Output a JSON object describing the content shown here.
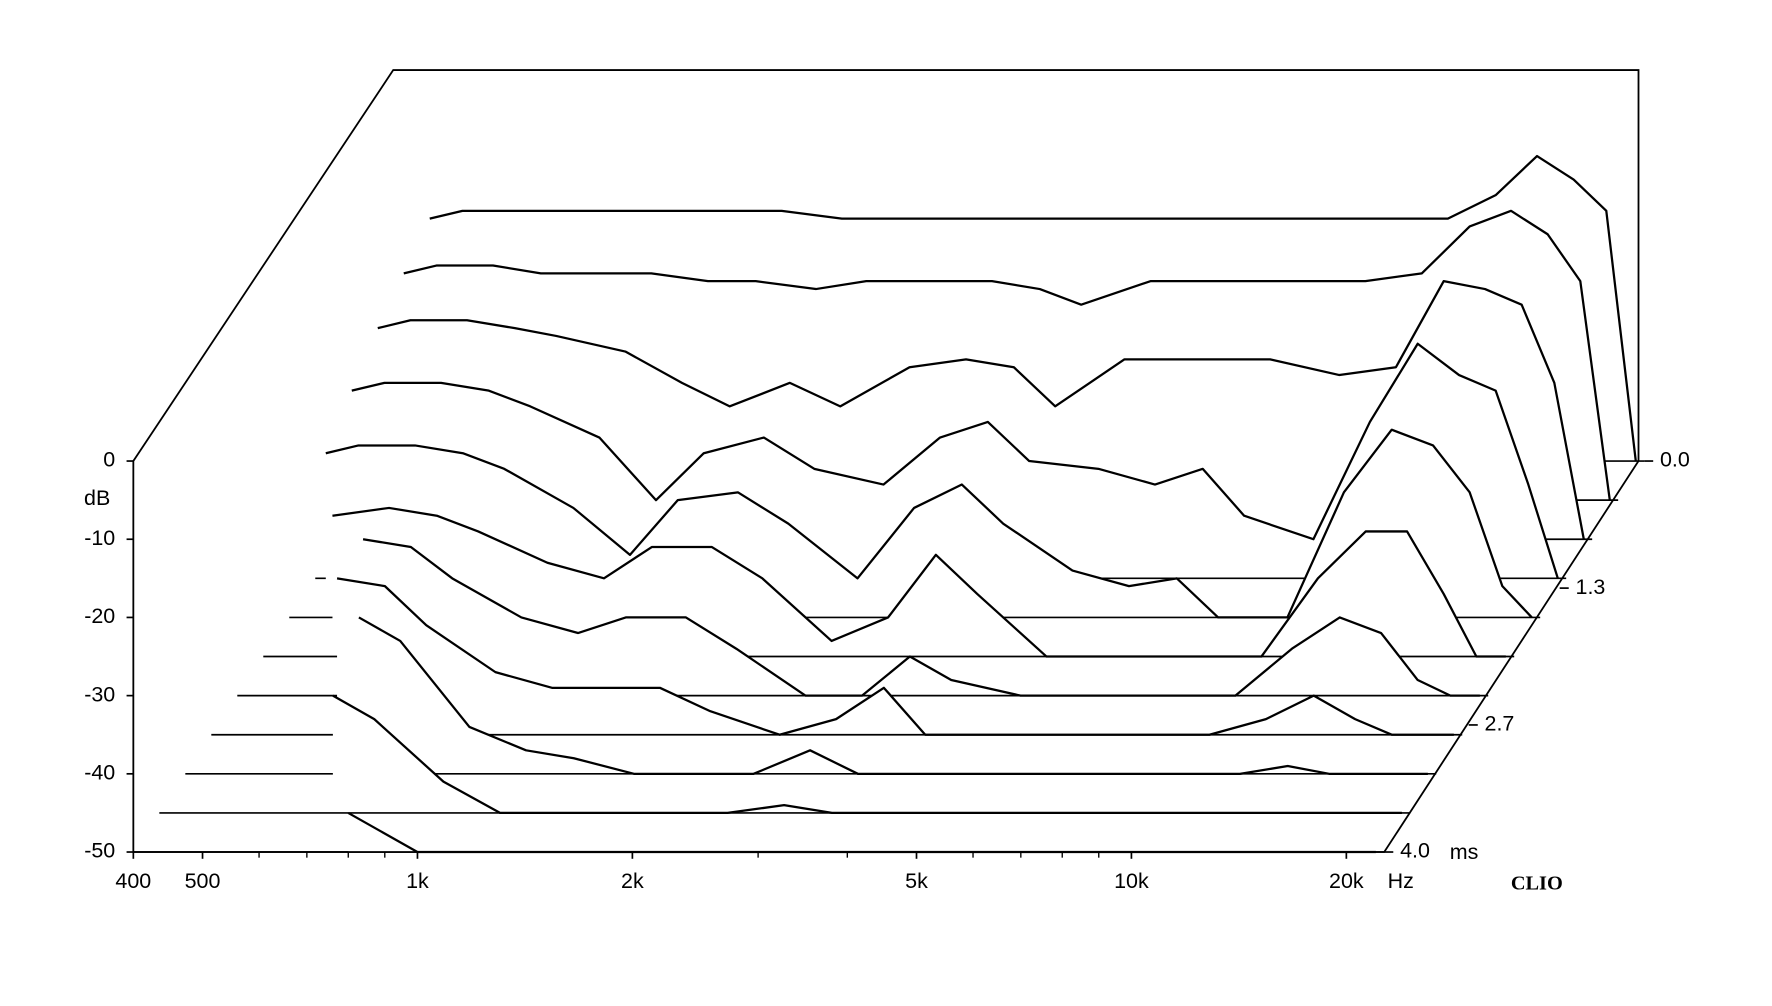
{
  "chart_data": {
    "type": "waterfall",
    "y_label": "dB",
    "x_unit": "Hz",
    "z_unit": "ms",
    "brand": "CLIO",
    "log_x": true,
    "xlim": [
      400,
      22600
    ],
    "xticks": [
      400,
      500,
      {
        "value": 1000,
        "label": "1k"
      },
      {
        "value": 2000,
        "label": "2k"
      },
      {
        "value": 5000,
        "label": "5k"
      },
      {
        "value": 10000,
        "label": "10k"
      },
      {
        "value": 20000,
        "label": "20k"
      }
    ],
    "xminor": [
      600,
      700,
      800,
      900,
      3000,
      4000,
      6000,
      7000,
      8000,
      9000
    ],
    "ylim": [
      -50,
      0
    ],
    "yticks": [
      0,
      -10,
      -20,
      -30,
      -40,
      -50
    ],
    "zlim": [
      0,
      4
    ],
    "zticks": [
      {
        "value": 0,
        "label": "0.0"
      },
      1.3,
      2.7,
      {
        "value": 4,
        "label": "4.0"
      }
    ],
    "color": "#000000",
    "x": [
      450,
      500,
      600,
      700,
      800,
      1000,
      1200,
      1400,
      1700,
      2000,
      2500,
      3000,
      3500,
      4000,
      5000,
      6000,
      7000,
      8000,
      10000,
      12000,
      14000,
      16000,
      18000,
      20000,
      22000
    ],
    "series": [
      {
        "time": 0,
        "values": [
          -19,
          -18,
          -18,
          -18,
          -18,
          -18,
          -18,
          -18,
          -19,
          -19,
          -19,
          -19,
          -19,
          -19,
          -19,
          -19,
          -19,
          -19,
          -19,
          -19,
          -16,
          -11,
          -14,
          -18,
          -50
        ]
      },
      {
        "time": 0.4,
        "values": [
          -21,
          -20,
          -20,
          -21,
          -21,
          -21,
          -22,
          -22,
          -23,
          -22,
          -22,
          -22,
          -23,
          -25,
          -22,
          -22,
          -22,
          -22,
          -22,
          -21,
          -15,
          -13,
          -16,
          -22,
          -50
        ]
      },
      {
        "time": 0.8,
        "values": [
          -23,
          -22,
          -22,
          -23,
          -24,
          -26,
          -30,
          -33,
          -30,
          -33,
          -28,
          -27,
          -28,
          -33,
          -27,
          -27,
          -27,
          -27,
          -29,
          -28,
          -17,
          -18,
          -20,
          -30,
          -50
        ]
      },
      {
        "time": 1.2,
        "values": [
          -26,
          -25,
          -25,
          -26,
          -28,
          -32,
          -40,
          -34,
          -32,
          -36,
          -38,
          -32,
          -30,
          -35,
          -36,
          -38,
          -36,
          -42,
          -45,
          -30,
          -20,
          -24,
          -26,
          -38,
          -50
        ]
      },
      {
        "time": 1.6,
        "values": [
          -29,
          -28,
          -28,
          -29,
          -31,
          -36,
          -42,
          -35,
          -34,
          -38,
          -45,
          -36,
          -33,
          -38,
          -44,
          -46,
          -45,
          -50,
          -50,
          -34,
          -26,
          -28,
          -34,
          -46,
          -50
        ]
      },
      {
        "time": 2.0,
        "values": [
          null,
          -32,
          -31,
          -32,
          -34,
          -38,
          -40,
          -36,
          -36,
          -40,
          -48,
          -45,
          -37,
          -42,
          -50,
          -50,
          -50,
          -50,
          -50,
          -40,
          -34,
          -34,
          -42,
          -50,
          -50
        ]
      },
      {
        "time": 2.4,
        "values": [
          null,
          null,
          -30,
          -31,
          -35,
          -40,
          -42,
          -40,
          -40,
          -44,
          -50,
          -50,
          -45,
          -48,
          -50,
          -50,
          -50,
          -50,
          -50,
          -44,
          -40,
          -42,
          -48,
          -50,
          -50
        ]
      },
      {
        "time": 2.8,
        "values": [
          null,
          null,
          -30,
          -31,
          -36,
          -42,
          -44,
          -44,
          -44,
          -47,
          -50,
          -48,
          -44,
          -50,
          -50,
          -50,
          -50,
          -50,
          -50,
          -48,
          -45,
          -48,
          -50,
          -50,
          -50
        ]
      },
      {
        "time": 3.2,
        "values": [
          null,
          null,
          null,
          -30,
          -33,
          -44,
          -47,
          -48,
          -50,
          -50,
          -50,
          -47,
          -50,
          -50,
          -50,
          -50,
          -50,
          -50,
          -50,
          -50,
          -49,
          -50,
          -50,
          -50,
          -50
        ]
      },
      {
        "time": 3.6,
        "values": [
          null,
          null,
          null,
          -35,
          -38,
          -46,
          -50,
          -50,
          -50,
          -50,
          -50,
          -49,
          -50,
          -50,
          -50,
          -50,
          -50,
          -50,
          -50,
          -50,
          -50,
          -50,
          -50,
          -50,
          -50
        ]
      },
      {
        "time": 4.0,
        "values": [
          null,
          null,
          null,
          null,
          -45,
          -50,
          -50,
          -50,
          -50,
          -50,
          -50,
          -50,
          -50,
          -50,
          -50,
          -50,
          -50,
          -50,
          -50,
          -50,
          -50,
          -50,
          -50,
          -50,
          -50
        ]
      }
    ]
  }
}
